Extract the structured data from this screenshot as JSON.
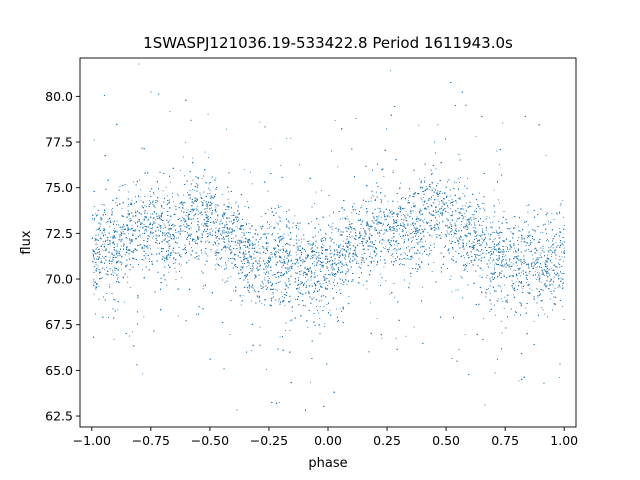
{
  "chart_data": {
    "type": "scatter",
    "title": "1SWASPJ121036.19-533422.8 Period 1611943.0s",
    "xlabel": "phase",
    "ylabel": "flux",
    "xlim": [
      -1.05,
      1.05
    ],
    "ylim": [
      61.9,
      82.1
    ],
    "xticks": [
      -1.0,
      -0.75,
      -0.5,
      -0.25,
      0.0,
      0.25,
      0.5,
      0.75,
      1.0
    ],
    "xtick_labels": [
      "−1.00",
      "−0.75",
      "−0.50",
      "−0.25",
      "0.00",
      "0.25",
      "0.50",
      "0.75",
      "1.00"
    ],
    "yticks": [
      62.5,
      65.0,
      67.5,
      70.0,
      72.5,
      75.0,
      77.5,
      80.0
    ],
    "ytick_labels": [
      "62.5",
      "65.0",
      "67.5",
      "70.0",
      "72.5",
      "75.0",
      "77.5",
      "80.0"
    ],
    "grid": false,
    "marker_color": "#1f77b4",
    "series": [
      {
        "phase_range": [
          -1.0,
          1.0
        ],
        "trend": {
          "x": [
            -1.0,
            -0.95,
            -0.9,
            -0.85,
            -0.8,
            -0.75,
            -0.7,
            -0.65,
            -0.6,
            -0.55,
            -0.5,
            -0.45,
            -0.4,
            -0.35,
            -0.3,
            -0.25,
            -0.2,
            -0.15,
            -0.1,
            -0.05,
            0.0,
            0.05,
            0.1,
            0.15,
            0.2,
            0.25,
            0.3,
            0.35,
            0.4,
            0.45,
            0.5,
            0.55,
            0.6,
            0.65,
            0.7,
            0.75,
            0.8,
            0.85,
            0.9,
            0.95,
            1.0
          ],
          "y": [
            71.3,
            71.9,
            71.7,
            72.1,
            72.9,
            72.8,
            72.7,
            72.6,
            73.1,
            73.4,
            73.1,
            72.6,
            72.1,
            71.2,
            70.8,
            70.9,
            71.3,
            70.7,
            70.5,
            70.6,
            70.8,
            71.1,
            71.6,
            72.2,
            72.6,
            72.9,
            72.8,
            72.5,
            73.0,
            73.6,
            73.3,
            72.8,
            72.4,
            71.8,
            71.3,
            71.0,
            70.9,
            70.8,
            70.6,
            70.9,
            71.3
          ]
        },
        "scatter_sd": 1.3,
        "point_count": 14000
      }
    ]
  }
}
